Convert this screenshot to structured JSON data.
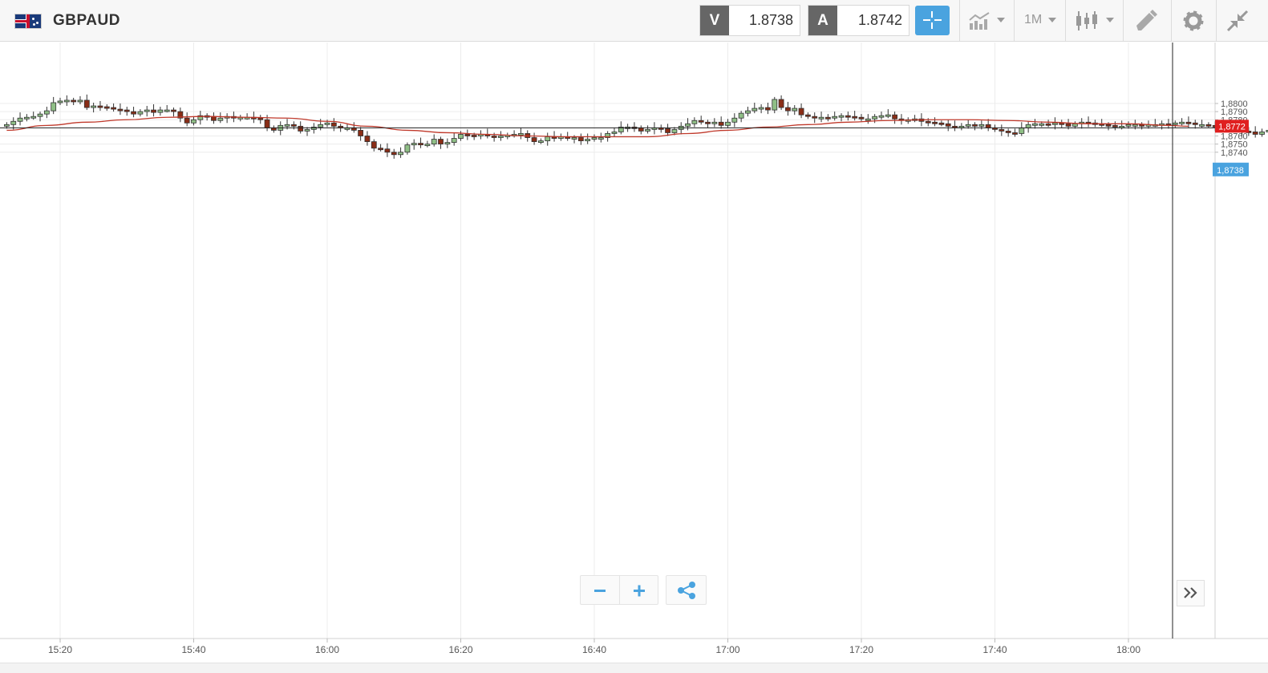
{
  "header": {
    "symbol": "GBPAUD",
    "sell_label": "V",
    "sell_price": "1.8738",
    "buy_label": "A",
    "buy_price": "1.8742",
    "timeframe": "1M"
  },
  "icons": {
    "flag": "gb-au-flag-icon",
    "crosshair": "crosshair-icon",
    "chart_type": "line-chart-icon",
    "candles": "candlestick-icon",
    "draw": "pencil-icon",
    "settings": "gear-icon",
    "collapse": "collapse-arrows-icon",
    "zoom_out": "minus-icon",
    "zoom_in": "plus-icon",
    "share": "share-icon",
    "scroll_end": "double-chevron-right-icon"
  },
  "colors": {
    "bull": "#8fbf86",
    "bear": "#8a2d16",
    "ma": "#c0392b",
    "last_price": "#e02020",
    "bid_badge": "#4aa3df"
  },
  "chart_data": {
    "type": "candlestick",
    "title": "",
    "ylim": [
      1.8734,
      1.8807
    ],
    "yticks": [
      "1,8740",
      "1,8750",
      "1,8760",
      "1,8770",
      "1,8780",
      "1,8790",
      "1,8800"
    ],
    "xticks": [
      "15:20",
      "15:40",
      "16:00",
      "16:20",
      "16:40",
      "17:00",
      "17:20",
      "17:40",
      "18:00"
    ],
    "bar_minutes": 1,
    "first_bar_time": "15:12",
    "last_price_label": "1,8772",
    "current_price_label": "1,8738",
    "crosshair_price": 1.877,
    "candles_close": [
      1.8774,
      1.8778,
      1.8782,
      1.8783,
      1.8784,
      1.8787,
      1.8791,
      1.8801,
      1.8803,
      1.8804,
      1.8803,
      1.8804,
      1.8795,
      1.8797,
      1.8796,
      1.8795,
      1.8793,
      1.8792,
      1.879,
      1.8787,
      1.879,
      1.8792,
      1.8789,
      1.8792,
      1.8792,
      1.879,
      1.8782,
      1.8776,
      1.878,
      1.8785,
      1.8784,
      1.8779,
      1.8782,
      1.8784,
      1.8782,
      1.8783,
      1.8783,
      1.8782,
      1.878,
      1.877,
      1.8767,
      1.8773,
      1.8774,
      1.8772,
      1.8766,
      1.8768,
      1.8771,
      1.8774,
      1.8776,
      1.8772,
      1.877,
      1.877,
      1.8767,
      1.876,
      1.8753,
      1.8745,
      1.8744,
      1.874,
      1.8737,
      1.874,
      1.8749,
      1.8751,
      1.875,
      1.875,
      1.8756,
      1.875,
      1.8752,
      1.8757,
      1.8762,
      1.8761,
      1.876,
      1.8762,
      1.876,
      1.8759,
      1.876,
      1.8761,
      1.8762,
      1.8763,
      1.8758,
      1.8753,
      1.8754,
      1.8759,
      1.8758,
      1.8759,
      1.8757,
      1.8758,
      1.8754,
      1.8756,
      1.8758,
      1.8758,
      1.8763,
      1.8765,
      1.8771,
      1.8771,
      1.877,
      1.8766,
      1.8768,
      1.877,
      1.8769,
      1.8764,
      1.8768,
      1.8772,
      1.8775,
      1.8779,
      1.8777,
      1.8776,
      1.8777,
      1.8773,
      1.8777,
      1.8782,
      1.8788,
      1.8791,
      1.8794,
      1.8795,
      1.8792,
      1.8805,
      1.8795,
      1.8791,
      1.8794,
      1.8786,
      1.8784,
      1.8782,
      1.8783,
      1.8782,
      1.8784,
      1.8785,
      1.8784,
      1.8783,
      1.8781,
      1.8781,
      1.8784,
      1.8785,
      1.8786,
      1.8781,
      1.8779,
      1.878,
      1.8781,
      1.8778,
      1.8777,
      1.8776,
      1.8775,
      1.8772,
      1.8771,
      1.8772,
      1.8774,
      1.8773,
      1.8774,
      1.877,
      1.8768,
      1.8766,
      1.8764,
      1.8763,
      1.877,
      1.8774,
      1.8775,
      1.8775,
      1.8774,
      1.8776,
      1.8775,
      1.8772,
      1.8775,
      1.8777,
      1.8776,
      1.8775,
      1.8774,
      1.8773,
      1.8772,
      1.8772,
      1.8774,
      1.8774,
      1.8773,
      1.8774,
      1.8774,
      1.8775,
      1.8774,
      1.8776,
      1.8777,
      1.8776,
      1.8774,
      1.8774,
      1.8773,
      1.8772,
      1.8773,
      1.8772,
      1.8771,
      1.8766,
      1.8765,
      1.8762,
      1.8765,
      1.8767
    ],
    "moving_average": {
      "x": [
        "15:12",
        "15:18",
        "15:24",
        "15:30",
        "15:36",
        "15:42",
        "15:48",
        "15:54",
        "16:00",
        "16:06",
        "16:12",
        "16:18",
        "16:24",
        "16:30",
        "16:36",
        "16:42",
        "16:48",
        "16:54",
        "17:00",
        "17:06",
        "17:12",
        "17:18",
        "17:24",
        "17:30",
        "17:36",
        "17:42",
        "17:48",
        "17:54",
        "18:00",
        "18:06",
        "18:09"
      ],
      "y": [
        1.8767,
        1.8773,
        1.8777,
        1.878,
        1.8783,
        1.8784,
        1.8783,
        1.8782,
        1.8778,
        1.8772,
        1.8767,
        1.8764,
        1.8762,
        1.876,
        1.8759,
        1.8759,
        1.8759,
        1.8763,
        1.8767,
        1.8771,
        1.8774,
        1.8777,
        1.8779,
        1.878,
        1.878,
        1.8779,
        1.8777,
        1.8775,
        1.8775,
        1.8773,
        1.8772
      ]
    }
  }
}
